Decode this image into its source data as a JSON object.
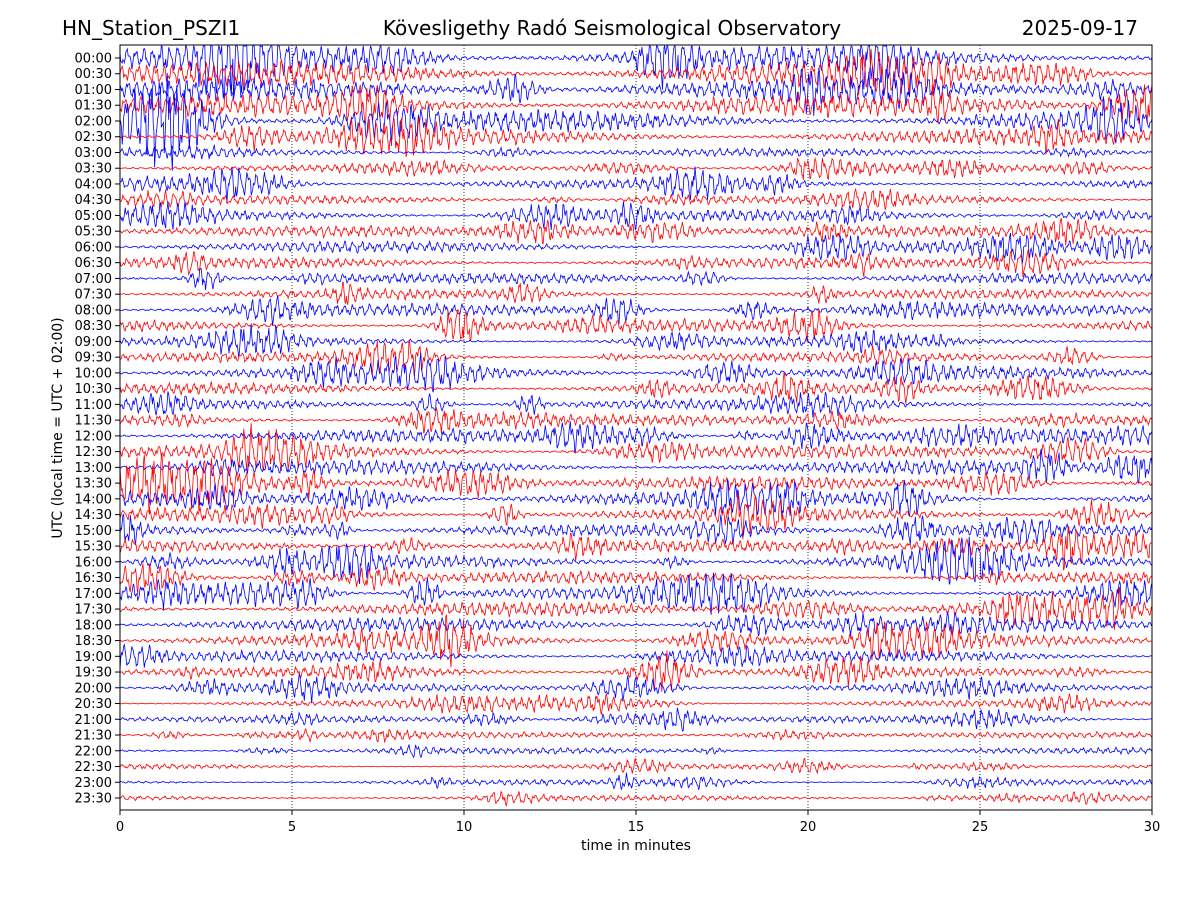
{
  "header": {
    "station": "HN_Station_PSZI1",
    "observatory": "Kövesligethy Radó Seismological Observatory",
    "date": "2025-09-17"
  },
  "chart_data": {
    "type": "line",
    "title": "Kövesligethy Radó Seismological Observatory",
    "xlabel": "time in minutes",
    "ylabel": "UTC (local time = UTC + 02:00)",
    "xlim": [
      0,
      30
    ],
    "x_ticks": [
      0,
      5,
      10,
      15,
      20,
      25,
      30
    ],
    "x_tick_labels": [
      "0",
      "5",
      "10",
      "15",
      "20",
      "25",
      "30"
    ],
    "grid": "vertical dotted lines at x ticks",
    "row_interval_minutes": 30,
    "row_labels": [
      "00:00",
      "00:30",
      "01:00",
      "01:30",
      "02:00",
      "02:30",
      "03:00",
      "03:30",
      "04:00",
      "04:30",
      "05:00",
      "05:30",
      "06:00",
      "06:30",
      "07:00",
      "07:30",
      "08:00",
      "08:30",
      "09:00",
      "09:30",
      "10:00",
      "10:30",
      "11:00",
      "11:30",
      "12:00",
      "12:30",
      "13:00",
      "13:30",
      "14:00",
      "14:30",
      "15:00",
      "15:30",
      "16:00",
      "16:30",
      "17:00",
      "17:30",
      "18:00",
      "18:30",
      "19:00",
      "19:30",
      "20:00",
      "20:30",
      "21:00",
      "21:30",
      "22:00",
      "22:30",
      "23:00",
      "23:30"
    ],
    "trace_colors": [
      "#0000ff",
      "#ff0000"
    ],
    "relative_activity": [
      1.0,
      1.0,
      0.95,
      0.95,
      0.9,
      0.8,
      0.45,
      0.4,
      0.55,
      0.5,
      0.6,
      0.6,
      0.6,
      0.6,
      0.6,
      0.55,
      0.65,
      0.65,
      0.55,
      0.55,
      0.65,
      0.6,
      0.6,
      0.6,
      0.7,
      0.7,
      0.7,
      0.7,
      0.7,
      0.65,
      0.65,
      0.65,
      0.65,
      0.65,
      0.7,
      0.7,
      0.7,
      0.65,
      0.6,
      0.55,
      0.45,
      0.4,
      0.4,
      0.35,
      0.35,
      0.3,
      0.3,
      0.3
    ]
  }
}
